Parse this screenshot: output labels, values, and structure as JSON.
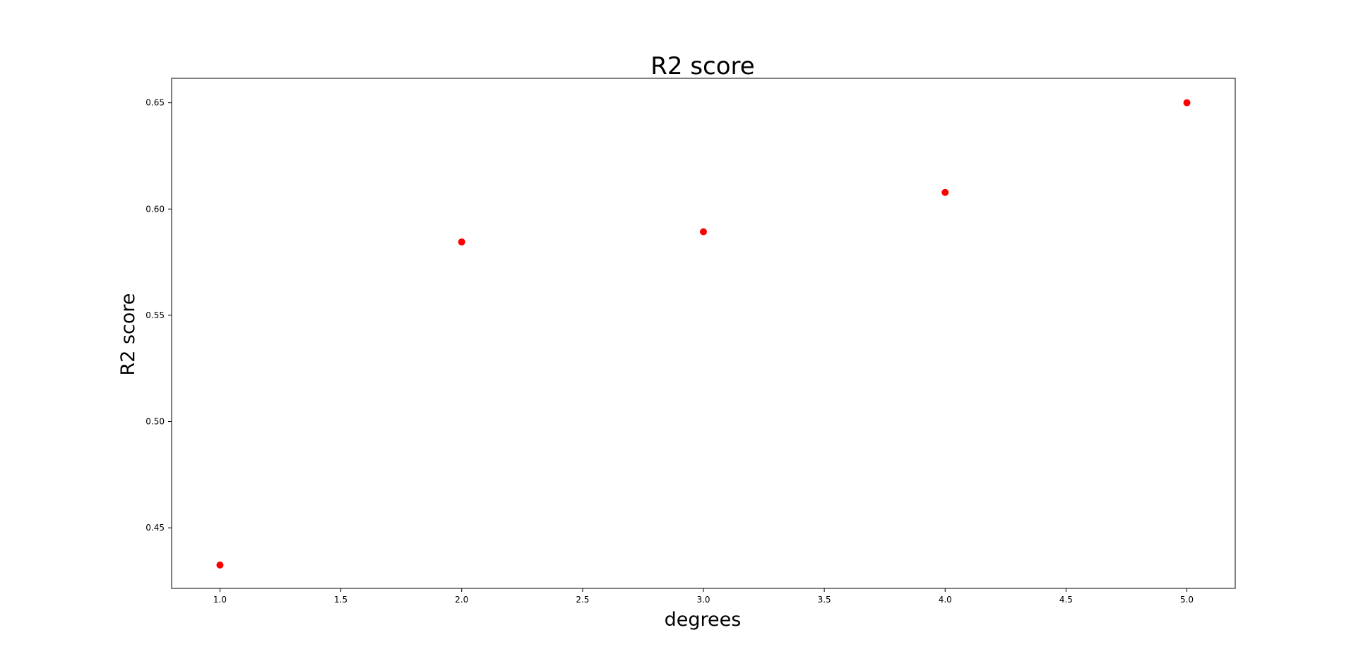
{
  "chart_data": {
    "type": "scatter",
    "title": "R2 score",
    "xlabel": "degrees",
    "ylabel": "R2 score",
    "x": [
      1.0,
      2.0,
      3.0,
      4.0,
      5.0
    ],
    "y": [
      0.4325,
      0.5845,
      0.5893,
      0.6078,
      0.65
    ],
    "xlim": [
      0.8,
      5.2
    ],
    "ylim": [
      0.4215,
      0.6615
    ],
    "xticks": [
      1.0,
      1.5,
      2.0,
      2.5,
      3.0,
      3.5,
      4.0,
      4.5,
      5.0
    ],
    "xtick_labels": [
      "1.0",
      "1.5",
      "2.0",
      "2.5",
      "3.0",
      "3.5",
      "4.0",
      "4.5",
      "5.0"
    ],
    "yticks": [
      0.45,
      0.5,
      0.55,
      0.6,
      0.65
    ],
    "ytick_labels": [
      "0.45",
      "0.50",
      "0.55",
      "0.60",
      "0.65"
    ],
    "marker_color": "#ff0000",
    "grid": false
  }
}
